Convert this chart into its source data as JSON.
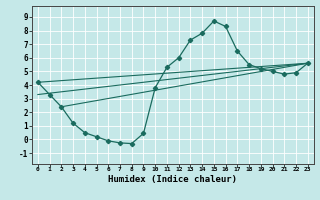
{
  "xlabel": "Humidex (Indice chaleur)",
  "xlim": [
    -0.5,
    23.5
  ],
  "ylim": [
    -1.8,
    9.8
  ],
  "xticks": [
    0,
    1,
    2,
    3,
    4,
    5,
    6,
    7,
    8,
    9,
    10,
    11,
    12,
    13,
    14,
    15,
    16,
    17,
    18,
    19,
    20,
    21,
    22,
    23
  ],
  "yticks": [
    -1,
    0,
    1,
    2,
    3,
    4,
    5,
    6,
    7,
    8,
    9
  ],
  "bg_color": "#c5e8e8",
  "grid_color": "#ffffff",
  "line_color": "#1a6b5e",
  "main_x": [
    0,
    1,
    2,
    3,
    4,
    5,
    6,
    7,
    8,
    9,
    10,
    11,
    12,
    13,
    14,
    15,
    16,
    17,
    18,
    19,
    20,
    21,
    22,
    23
  ],
  "main_y": [
    4.2,
    3.3,
    2.4,
    1.2,
    0.5,
    0.2,
    -0.1,
    -0.25,
    -0.3,
    0.45,
    3.8,
    5.3,
    6.0,
    7.3,
    7.8,
    8.7,
    8.3,
    6.5,
    5.5,
    5.2,
    5.0,
    4.8,
    4.9,
    5.6
  ],
  "line1_x": [
    0,
    23
  ],
  "line1_y": [
    4.2,
    5.6
  ],
  "line2_x": [
    0,
    23
  ],
  "line2_y": [
    3.3,
    5.6
  ],
  "line3_x": [
    2,
    23
  ],
  "line3_y": [
    2.4,
    5.6
  ]
}
